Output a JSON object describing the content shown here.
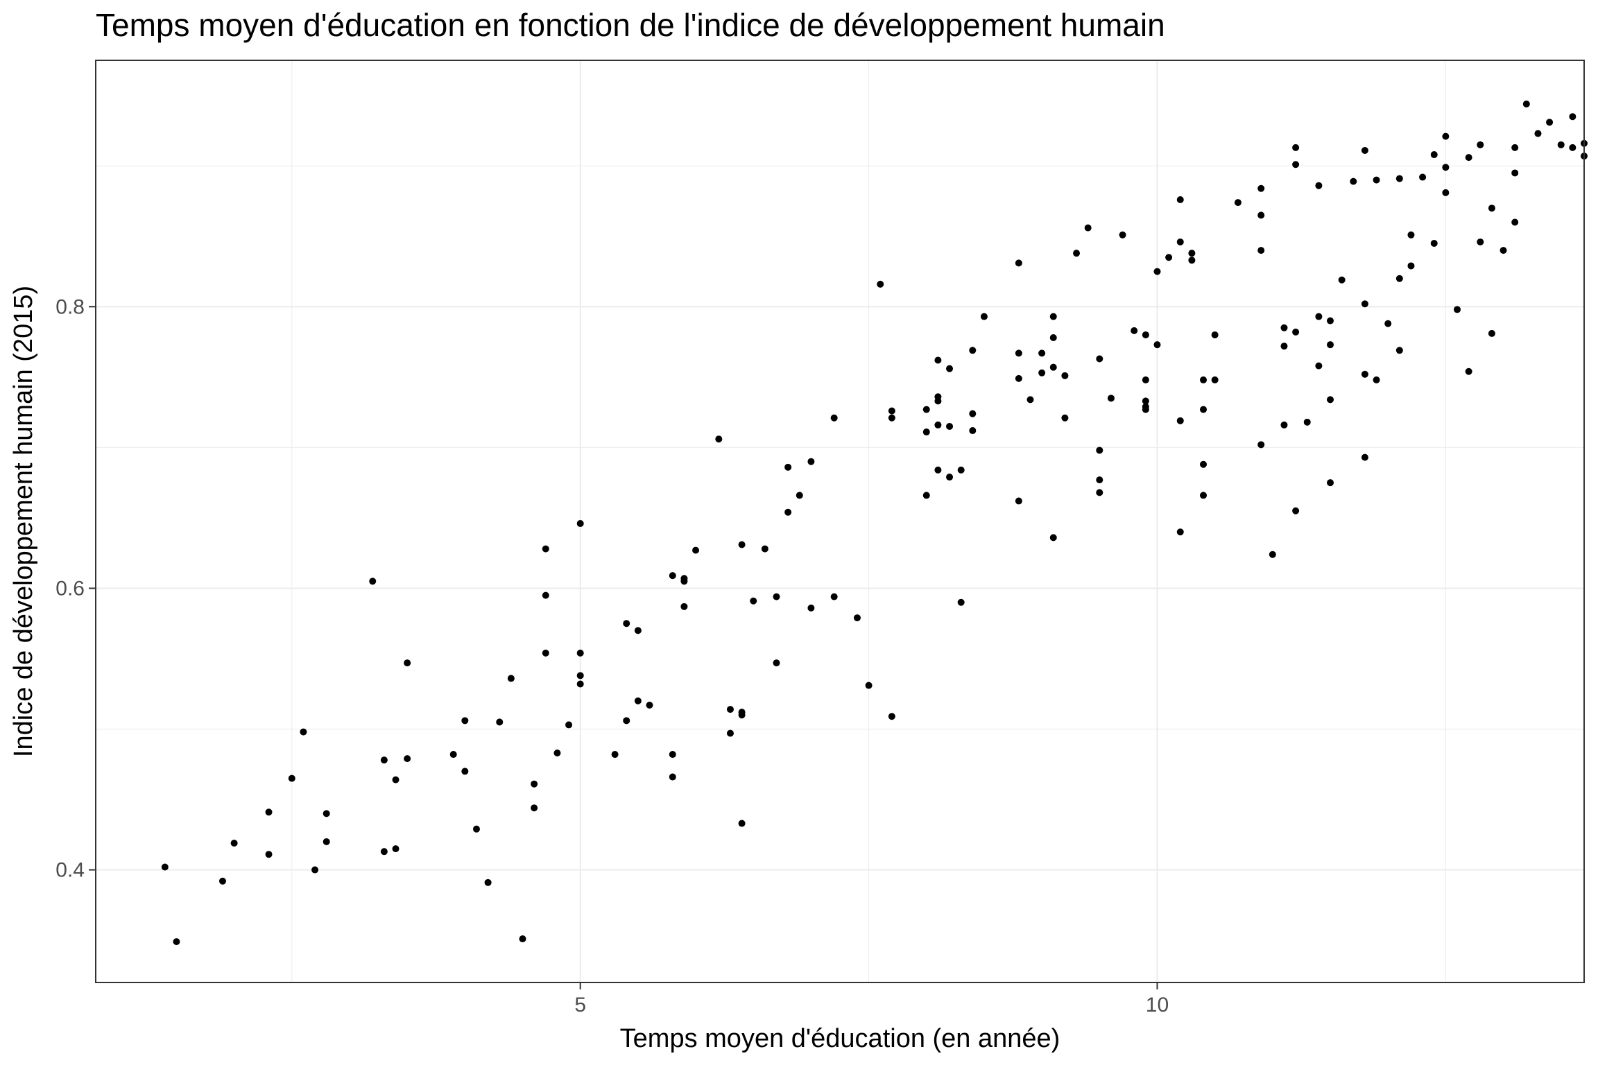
{
  "chart_data": {
    "type": "scatter",
    "title": "Temps moyen d'éducation en fonction de l'indice de développement humain",
    "xlabel": "Temps moyen d'éducation (en année)",
    "ylabel": "Indice de développement humain (2015)",
    "xlim": [
      0.8,
      13.7
    ],
    "ylim": [
      0.32,
      0.975
    ],
    "x_ticks": [
      5,
      10
    ],
    "x_tick_labels": [
      "5",
      "10"
    ],
    "y_ticks": [
      0.4,
      0.6,
      0.8
    ],
    "y_tick_labels": [
      "0.4",
      "0.6",
      "0.8"
    ],
    "x_minor": [
      2.5,
      7.5,
      12.5
    ],
    "y_minor": [
      0.5,
      0.7,
      0.9
    ],
    "grid": true,
    "legend": "none",
    "point_color": "#000000",
    "points": [
      [
        1.4,
        0.402
      ],
      [
        1.5,
        0.349
      ],
      [
        1.9,
        0.392
      ],
      [
        2.0,
        0.419
      ],
      [
        2.3,
        0.441
      ],
      [
        2.3,
        0.411
      ],
      [
        2.5,
        0.465
      ],
      [
        2.6,
        0.498
      ],
      [
        2.7,
        0.4
      ],
      [
        2.8,
        0.42
      ],
      [
        2.8,
        0.44
      ],
      [
        3.2,
        0.605
      ],
      [
        3.3,
        0.413
      ],
      [
        3.3,
        0.478
      ],
      [
        3.4,
        0.415
      ],
      [
        3.4,
        0.464
      ],
      [
        3.5,
        0.479
      ],
      [
        3.5,
        0.547
      ],
      [
        3.9,
        0.482
      ],
      [
        4.0,
        0.47
      ],
      [
        4.0,
        0.506
      ],
      [
        4.1,
        0.429
      ],
      [
        4.2,
        0.391
      ],
      [
        4.3,
        0.505
      ],
      [
        4.4,
        0.536
      ],
      [
        4.5,
        0.351
      ],
      [
        4.6,
        0.461
      ],
      [
        4.6,
        0.444
      ],
      [
        4.7,
        0.628
      ],
      [
        4.7,
        0.595
      ],
      [
        4.7,
        0.554
      ],
      [
        4.8,
        0.483
      ],
      [
        4.9,
        0.503
      ],
      [
        5.0,
        0.646
      ],
      [
        5.0,
        0.554
      ],
      [
        5.0,
        0.538
      ],
      [
        5.0,
        0.532
      ],
      [
        5.3,
        0.482
      ],
      [
        5.4,
        0.575
      ],
      [
        5.4,
        0.506
      ],
      [
        5.5,
        0.57
      ],
      [
        5.5,
        0.52
      ],
      [
        5.6,
        0.517
      ],
      [
        5.8,
        0.609
      ],
      [
        5.8,
        0.482
      ],
      [
        5.8,
        0.466
      ],
      [
        5.9,
        0.607
      ],
      [
        5.9,
        0.605
      ],
      [
        5.9,
        0.587
      ],
      [
        6.0,
        0.627
      ],
      [
        6.2,
        0.706
      ],
      [
        6.3,
        0.514
      ],
      [
        6.3,
        0.497
      ],
      [
        6.4,
        0.631
      ],
      [
        6.4,
        0.512
      ],
      [
        6.4,
        0.51
      ],
      [
        6.4,
        0.433
      ],
      [
        6.5,
        0.591
      ],
      [
        6.6,
        0.628
      ],
      [
        6.7,
        0.594
      ],
      [
        6.7,
        0.547
      ],
      [
        6.8,
        0.686
      ],
      [
        6.8,
        0.654
      ],
      [
        6.9,
        0.666
      ],
      [
        7.0,
        0.69
      ],
      [
        7.0,
        0.586
      ],
      [
        7.2,
        0.721
      ],
      [
        7.2,
        0.594
      ],
      [
        7.4,
        0.579
      ],
      [
        7.5,
        0.531
      ],
      [
        7.6,
        0.816
      ],
      [
        7.7,
        0.509
      ],
      [
        7.7,
        0.726
      ],
      [
        7.7,
        0.721
      ],
      [
        8.0,
        0.727
      ],
      [
        8.0,
        0.711
      ],
      [
        8.0,
        0.666
      ],
      [
        8.1,
        0.762
      ],
      [
        8.1,
        0.736
      ],
      [
        8.1,
        0.733
      ],
      [
        8.1,
        0.716
      ],
      [
        8.1,
        0.684
      ],
      [
        8.2,
        0.756
      ],
      [
        8.2,
        0.715
      ],
      [
        8.2,
        0.679
      ],
      [
        8.3,
        0.684
      ],
      [
        8.3,
        0.59
      ],
      [
        8.4,
        0.769
      ],
      [
        8.4,
        0.724
      ],
      [
        8.4,
        0.712
      ],
      [
        8.5,
        0.793
      ],
      [
        8.8,
        0.831
      ],
      [
        8.8,
        0.767
      ],
      [
        8.8,
        0.749
      ],
      [
        8.8,
        0.662
      ],
      [
        8.9,
        0.734
      ],
      [
        9.0,
        0.767
      ],
      [
        9.0,
        0.753
      ],
      [
        9.1,
        0.793
      ],
      [
        9.1,
        0.778
      ],
      [
        9.1,
        0.757
      ],
      [
        9.1,
        0.636
      ],
      [
        9.2,
        0.751
      ],
      [
        9.2,
        0.721
      ],
      [
        9.3,
        0.838
      ],
      [
        9.4,
        0.856
      ],
      [
        9.5,
        0.763
      ],
      [
        9.5,
        0.698
      ],
      [
        9.5,
        0.677
      ],
      [
        9.5,
        0.668
      ],
      [
        9.6,
        0.735
      ],
      [
        9.7,
        0.851
      ],
      [
        9.8,
        0.783
      ],
      [
        9.9,
        0.78
      ],
      [
        9.9,
        0.748
      ],
      [
        9.9,
        0.733
      ],
      [
        9.9,
        0.729
      ],
      [
        9.9,
        0.727
      ],
      [
        10.0,
        0.825
      ],
      [
        10.0,
        0.773
      ],
      [
        10.1,
        0.835
      ],
      [
        10.2,
        0.876
      ],
      [
        10.2,
        0.846
      ],
      [
        10.2,
        0.719
      ],
      [
        10.2,
        0.64
      ],
      [
        10.3,
        0.838
      ],
      [
        10.3,
        0.833
      ],
      [
        10.4,
        0.748
      ],
      [
        10.4,
        0.727
      ],
      [
        10.4,
        0.688
      ],
      [
        10.4,
        0.666
      ],
      [
        10.5,
        0.78
      ],
      [
        10.5,
        0.748
      ],
      [
        10.7,
        0.874
      ],
      [
        10.9,
        0.884
      ],
      [
        10.9,
        0.865
      ],
      [
        10.9,
        0.84
      ],
      [
        10.9,
        0.702
      ],
      [
        11.0,
        0.624
      ],
      [
        11.1,
        0.785
      ],
      [
        11.1,
        0.772
      ],
      [
        11.1,
        0.716
      ],
      [
        11.2,
        0.913
      ],
      [
        11.2,
        0.901
      ],
      [
        11.2,
        0.782
      ],
      [
        11.2,
        0.655
      ],
      [
        11.3,
        0.718
      ],
      [
        11.4,
        0.886
      ],
      [
        11.4,
        0.793
      ],
      [
        11.4,
        0.758
      ],
      [
        11.5,
        0.79
      ],
      [
        11.5,
        0.773
      ],
      [
        11.5,
        0.734
      ],
      [
        11.5,
        0.675
      ],
      [
        11.6,
        0.819
      ],
      [
        11.7,
        0.889
      ],
      [
        11.8,
        0.911
      ],
      [
        11.8,
        0.802
      ],
      [
        11.8,
        0.752
      ],
      [
        11.8,
        0.693
      ],
      [
        11.9,
        0.89
      ],
      [
        11.9,
        0.748
      ],
      [
        12.0,
        0.788
      ],
      [
        12.1,
        0.891
      ],
      [
        12.1,
        0.82
      ],
      [
        12.1,
        0.769
      ],
      [
        12.2,
        0.851
      ],
      [
        12.2,
        0.829
      ],
      [
        12.3,
        0.892
      ],
      [
        12.4,
        0.908
      ],
      [
        12.4,
        0.845
      ],
      [
        12.5,
        0.921
      ],
      [
        12.5,
        0.899
      ],
      [
        12.5,
        0.881
      ],
      [
        12.6,
        0.798
      ],
      [
        12.7,
        0.906
      ],
      [
        12.7,
        0.754
      ],
      [
        12.8,
        0.915
      ],
      [
        12.8,
        0.846
      ],
      [
        12.9,
        0.87
      ],
      [
        12.9,
        0.781
      ],
      [
        13.0,
        0.84
      ],
      [
        13.1,
        0.913
      ],
      [
        13.1,
        0.895
      ],
      [
        13.1,
        0.86
      ],
      [
        13.2,
        0.944
      ],
      [
        13.3,
        0.923
      ],
      [
        13.4,
        0.931
      ],
      [
        13.5,
        0.915
      ],
      [
        13.6,
        0.935
      ],
      [
        13.6,
        0.913
      ],
      [
        13.7,
        0.916
      ],
      [
        13.7,
        0.907
      ]
    ]
  }
}
